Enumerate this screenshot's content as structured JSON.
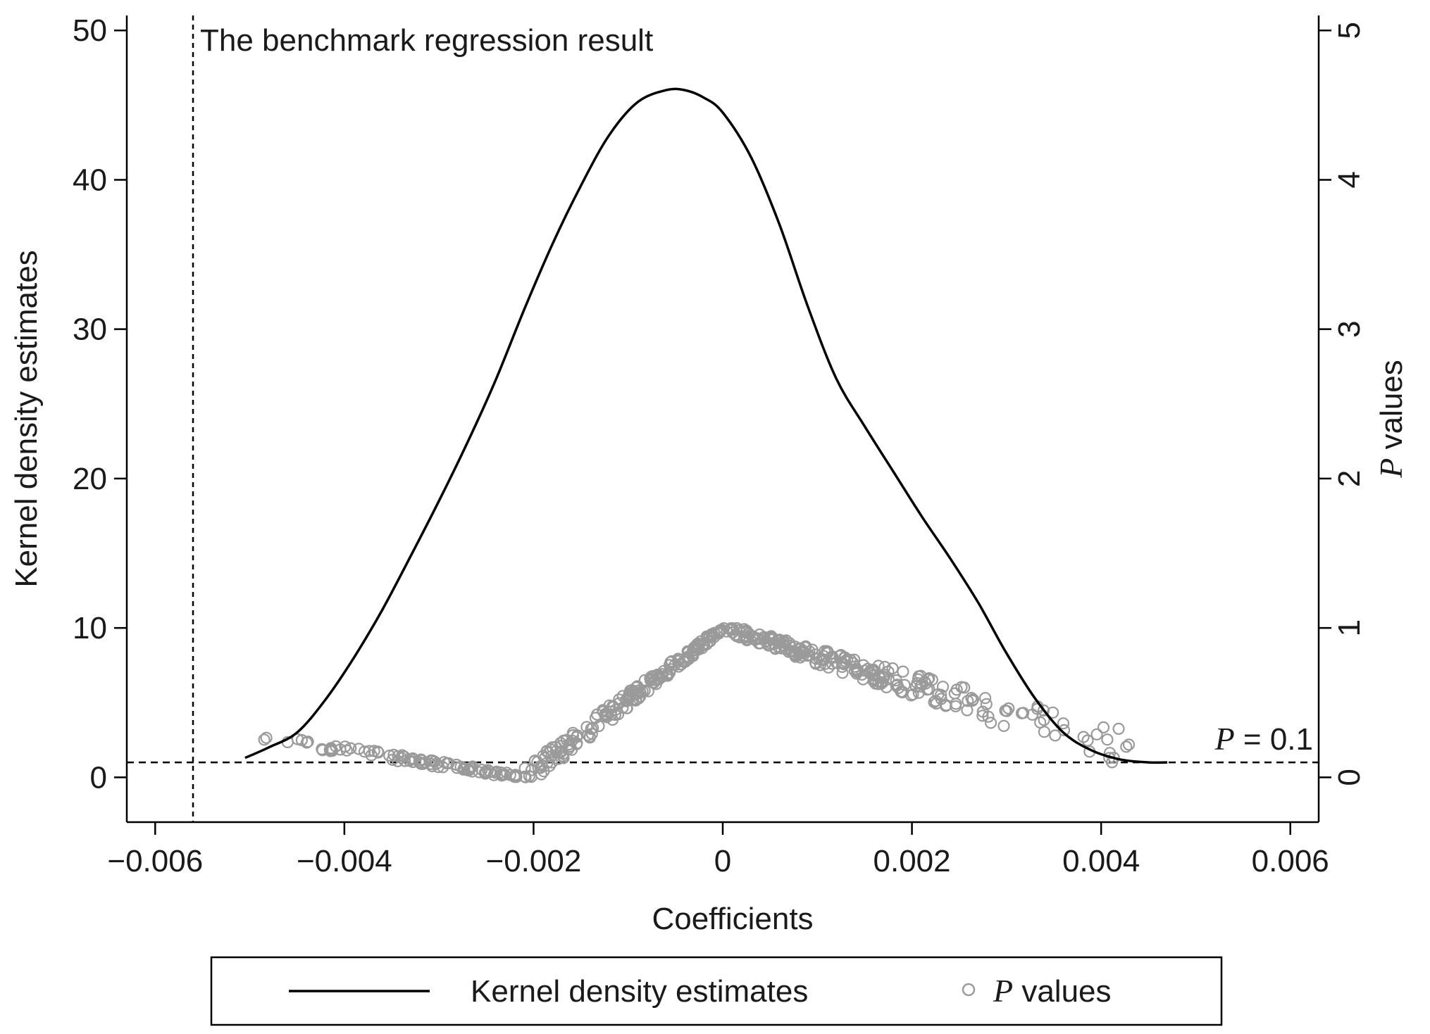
{
  "chart_data": {
    "type": "line+scatter",
    "xlabel": "Coefficients",
    "ylabel_left": "Kernel density estimates",
    "ylabel_right": {
      "italic": "P",
      "rest": " values"
    },
    "xlim": [
      -0.0063,
      0.0063
    ],
    "ylim_left": [
      -3,
      51
    ],
    "ylim_right": [
      -0.3,
      5.1
    ],
    "x_ticks": [
      -0.006,
      -0.004,
      -0.002,
      0,
      0.002,
      0.004,
      0.006
    ],
    "x_tick_labels": [
      "−0.006",
      "−0.004",
      "−0.002",
      "0",
      "0.002",
      "0.004",
      "0.006"
    ],
    "y_left_ticks": [
      0,
      10,
      20,
      30,
      40,
      50
    ],
    "y_left_tick_labels": [
      "0",
      "10",
      "20",
      "30",
      "40",
      "50"
    ],
    "y_right_ticks": [
      0,
      1,
      2,
      3,
      4,
      5
    ],
    "y_right_tick_labels": [
      "0",
      "1",
      "2",
      "3",
      "4",
      "5"
    ],
    "benchmark_line": {
      "x": -0.0056,
      "label": "The benchmark regression result"
    },
    "p_threshold": {
      "y": 0.1,
      "label_italic": "P",
      "label_rest": " = 0.1"
    },
    "kde": {
      "name": "Kernel density estimates",
      "x": [
        -0.00505,
        -0.0048,
        -0.0045,
        -0.0042,
        -0.0039,
        -0.0036,
        -0.0033,
        -0.003,
        -0.0027,
        -0.0024,
        -0.0021,
        -0.0018,
        -0.0015,
        -0.0012,
        -0.0009,
        -0.0006,
        -0.0004,
        -0.0002,
        0,
        0.0003,
        0.0006,
        0.0009,
        0.0012,
        0.0015,
        0.0018,
        0.0021,
        0.0024,
        0.0027,
        0.003,
        0.0033,
        0.0036,
        0.0039,
        0.0042,
        0.0045,
        0.0047
      ],
      "y": [
        1.3,
        2.0,
        3.0,
        5.2,
        8.0,
        11.2,
        14.8,
        18.5,
        22.4,
        26.6,
        31.3,
        35.7,
        39.6,
        43.0,
        45.2,
        46.0,
        46.0,
        45.5,
        44.5,
        41.5,
        37.0,
        31.5,
        26.7,
        23.5,
        20.5,
        17.5,
        14.7,
        11.7,
        8.3,
        5.3,
        3.0,
        1.8,
        1.2,
        1.0,
        1.0
      ]
    },
    "pvalues": {
      "name": "P values",
      "peak_x": 0.0,
      "peak_y": 1.0,
      "left_slope_per_unit": 480,
      "right_slope_per_unit": 190,
      "x_min": -0.00505,
      "x_max": 0.0047,
      "count": 520
    },
    "legend": [
      {
        "label": "Kernel density estimates",
        "marker": "line"
      },
      {
        "label_italic": "P",
        "label_rest": " values",
        "marker": "hollow-circle"
      }
    ],
    "colors": {
      "kde": "#000000",
      "points": "#9a9a9a",
      "ref_lines": "#000000"
    }
  }
}
